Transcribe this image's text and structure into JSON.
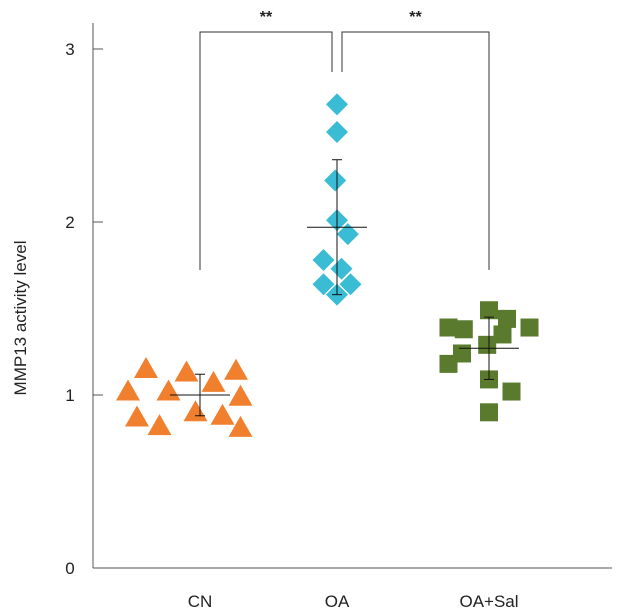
{
  "chart_data": {
    "type": "scatter",
    "title": "",
    "xlabel": "",
    "ylabel": "MMP13 activity level",
    "ylim": [
      0,
      3.15
    ],
    "yticks": [
      0,
      1,
      2,
      3
    ],
    "grid": false,
    "legend": "none",
    "categories": [
      "CN",
      "OA",
      "OA+Sal"
    ],
    "series": [
      {
        "category": "CN",
        "marker": "triangle-up",
        "color": "#f07f2e",
        "points": [
          {
            "x": -0.8,
            "y": 1.02
          },
          {
            "x": -0.7,
            "y": 0.87
          },
          {
            "x": -0.6,
            "y": 1.15
          },
          {
            "x": -0.45,
            "y": 0.82
          },
          {
            "x": -0.35,
            "y": 1.02
          },
          {
            "x": -0.15,
            "y": 1.13
          },
          {
            "x": -0.05,
            "y": 0.9
          },
          {
            "x": 0.15,
            "y": 1.07
          },
          {
            "x": 0.25,
            "y": 0.88
          },
          {
            "x": 0.4,
            "y": 1.14
          },
          {
            "x": 0.45,
            "y": 0.99
          },
          {
            "x": 0.45,
            "y": 0.81
          }
        ],
        "mean": 1.0,
        "sd": 0.12
      },
      {
        "category": "OA",
        "marker": "diamond",
        "color": "#3bbcd5",
        "points": [
          {
            "x": 0.0,
            "y": 2.68
          },
          {
            "x": 0.0,
            "y": 2.52
          },
          {
            "x": -0.02,
            "y": 2.24
          },
          {
            "x": 0.0,
            "y": 2.01
          },
          {
            "x": 0.12,
            "y": 1.93
          },
          {
            "x": -0.15,
            "y": 1.78
          },
          {
            "x": 0.05,
            "y": 1.73
          },
          {
            "x": -0.15,
            "y": 1.64
          },
          {
            "x": 0.15,
            "y": 1.64
          },
          {
            "x": 0.0,
            "y": 1.58
          }
        ],
        "mean": 1.97,
        "sd": 0.39
      },
      {
        "category": "OA+Sal",
        "marker": "square",
        "color": "#5a7a2d",
        "points": [
          {
            "x": -0.45,
            "y": 1.39
          },
          {
            "x": -0.28,
            "y": 1.38
          },
          {
            "x": -0.45,
            "y": 1.18
          },
          {
            "x": 0.0,
            "y": 1.49
          },
          {
            "x": 0.2,
            "y": 1.44
          },
          {
            "x": 0.15,
            "y": 1.35
          },
          {
            "x": 0.45,
            "y": 1.39
          },
          {
            "x": -0.02,
            "y": 1.29
          },
          {
            "x": -0.3,
            "y": 1.24
          },
          {
            "x": 0.0,
            "y": 1.09
          },
          {
            "x": 0.25,
            "y": 1.02
          },
          {
            "x": 0.0,
            "y": 0.9
          }
        ],
        "mean": 1.27,
        "sd": 0.18
      }
    ],
    "annotations": [
      {
        "from": "CN",
        "to": "OA",
        "label": "**"
      },
      {
        "from": "OA",
        "to": "OA+Sal",
        "label": "**"
      }
    ]
  }
}
